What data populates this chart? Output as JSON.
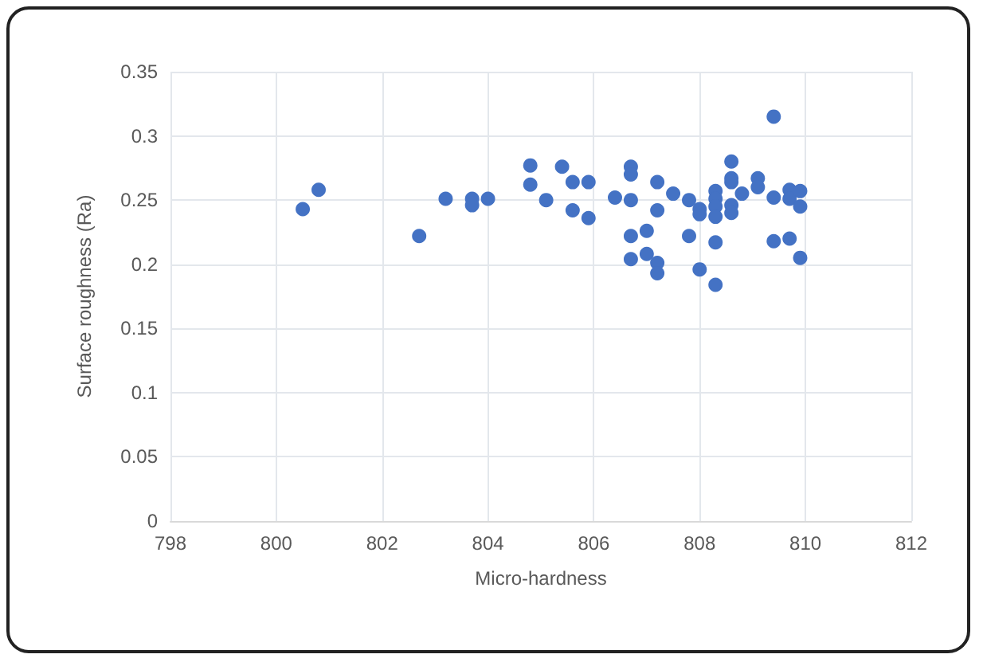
{
  "chart_data": {
    "type": "scatter",
    "xlabel": "Micro-hardness",
    "ylabel": "Surface roughness (Ra)",
    "x": [
      800.5,
      800.8,
      802.7,
      803.2,
      803.7,
      803.7,
      804.0,
      804.8,
      804.8,
      805.1,
      805.4,
      805.6,
      805.6,
      805.9,
      805.9,
      806.4,
      806.7,
      806.7,
      806.7,
      806.7,
      806.7,
      807.0,
      807.0,
      807.2,
      807.2,
      807.2,
      807.2,
      807.5,
      807.8,
      807.8,
      808.0,
      808.0,
      808.0,
      808.3,
      808.3,
      808.3,
      808.3,
      808.3,
      808.3,
      808.6,
      808.6,
      808.6,
      808.6,
      808.6,
      808.8,
      809.1,
      809.1,
      809.4,
      809.4,
      809.4,
      809.7,
      809.7,
      809.7,
      809.9,
      809.9,
      809.9
    ],
    "values": [
      0.243,
      0.258,
      0.222,
      0.251,
      0.251,
      0.246,
      0.251,
      0.277,
      0.262,
      0.25,
      0.276,
      0.264,
      0.242,
      0.264,
      0.236,
      0.252,
      0.276,
      0.27,
      0.25,
      0.222,
      0.204,
      0.226,
      0.208,
      0.264,
      0.242,
      0.201,
      0.193,
      0.255,
      0.25,
      0.222,
      0.243,
      0.239,
      0.196,
      0.257,
      0.251,
      0.245,
      0.237,
      0.217,
      0.184,
      0.28,
      0.267,
      0.264,
      0.246,
      0.24,
      0.255,
      0.267,
      0.26,
      0.315,
      0.252,
      0.218,
      0.258,
      0.251,
      0.22,
      0.257,
      0.245,
      0.205
    ],
    "color": "#4472c4",
    "marker": "circle",
    "grid": true,
    "xlim": [
      798,
      812
    ],
    "xticks": [
      798,
      800,
      802,
      804,
      806,
      808,
      810,
      812
    ],
    "ylim": [
      0,
      0.35
    ],
    "yticks": [
      0,
      0.05,
      0.1,
      0.15,
      0.2,
      0.25,
      0.3,
      0.35
    ]
  }
}
